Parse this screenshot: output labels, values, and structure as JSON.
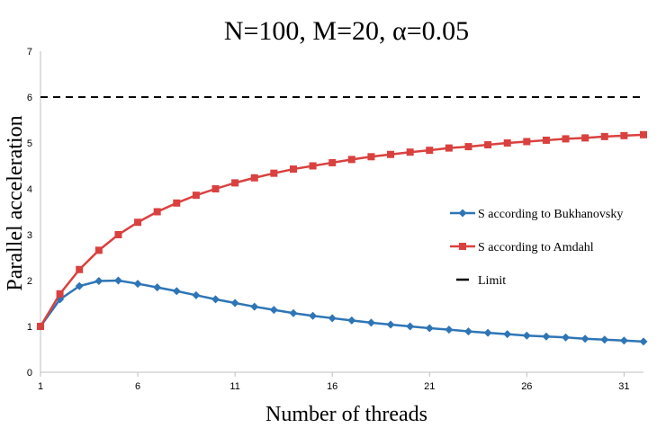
{
  "chart_data": {
    "type": "line",
    "title": "N=100, M=20, α=0.05",
    "xlabel": "Number of threads",
    "ylabel": "Parallel acceleration",
    "xlim": [
      1,
      32
    ],
    "ylim": [
      0,
      7
    ],
    "x_ticks": [
      1,
      6,
      11,
      16,
      21,
      26,
      31
    ],
    "y_ticks": [
      0,
      1,
      2,
      3,
      4,
      5,
      6,
      7
    ],
    "grid": false,
    "legend_position": "right",
    "x": [
      1,
      2,
      3,
      4,
      5,
      6,
      7,
      8,
      9,
      10,
      11,
      12,
      13,
      14,
      15,
      16,
      17,
      18,
      19,
      20,
      21,
      22,
      23,
      24,
      25,
      26,
      27,
      28,
      29,
      30,
      31,
      32
    ],
    "series": [
      {
        "name": "S according to Bukhanovsky",
        "color": "#2e75b6",
        "marker": "diamond",
        "values": [
          1.0,
          1.59,
          1.88,
          1.99,
          2.0,
          1.93,
          1.85,
          1.77,
          1.68,
          1.59,
          1.51,
          1.43,
          1.36,
          1.29,
          1.23,
          1.18,
          1.13,
          1.08,
          1.04,
          1.0,
          0.96,
          0.93,
          0.89,
          0.86,
          0.83,
          0.8,
          0.78,
          0.76,
          0.73,
          0.71,
          0.69,
          0.67
        ]
      },
      {
        "name": "S according to Amdahl",
        "color": "#d9413f",
        "marker": "square",
        "values": [
          1.0,
          1.71,
          2.24,
          2.66,
          3.0,
          3.27,
          3.5,
          3.69,
          3.86,
          4.0,
          4.13,
          4.24,
          4.34,
          4.43,
          4.5,
          4.57,
          4.64,
          4.7,
          4.75,
          4.8,
          4.84,
          4.89,
          4.92,
          4.96,
          5.0,
          5.03,
          5.06,
          5.09,
          5.11,
          5.14,
          5.16,
          5.18
        ]
      },
      {
        "name": "Limit",
        "color": "#000000",
        "marker": "none",
        "dashed": true,
        "constant": 6
      }
    ]
  }
}
